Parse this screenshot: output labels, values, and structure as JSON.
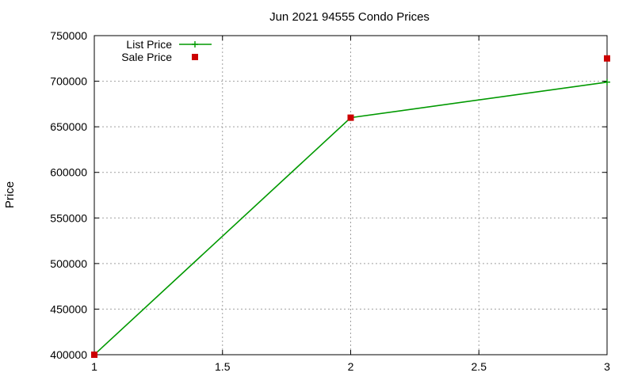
{
  "chart_data": {
    "type": "line",
    "title": "Jun 2021 94555 Condo Prices",
    "xlabel": "",
    "ylabel": "Price",
    "xlim": [
      1,
      3
    ],
    "ylim": [
      400000,
      750000
    ],
    "x_ticks": [
      1,
      1.5,
      2,
      2.5,
      3
    ],
    "x_tick_labels": [
      "1",
      "1.5",
      "2",
      "2.5",
      "3"
    ],
    "y_ticks": [
      400000,
      450000,
      500000,
      550000,
      600000,
      650000,
      700000,
      750000
    ],
    "y_tick_labels": [
      "400000",
      "450000",
      "500000",
      "550000",
      "600000",
      "650000",
      "700000",
      "750000"
    ],
    "grid": true,
    "legend_position": "top-left",
    "series": [
      {
        "name": "List Price",
        "style": "line",
        "color": "#009900",
        "x": [
          1,
          2,
          3
        ],
        "y": [
          400000,
          660000,
          699000
        ]
      },
      {
        "name": "Sale Price",
        "style": "points",
        "color": "#cc0000",
        "x": [
          1,
          2,
          3
        ],
        "y": [
          400000,
          660000,
          725000
        ]
      }
    ]
  }
}
